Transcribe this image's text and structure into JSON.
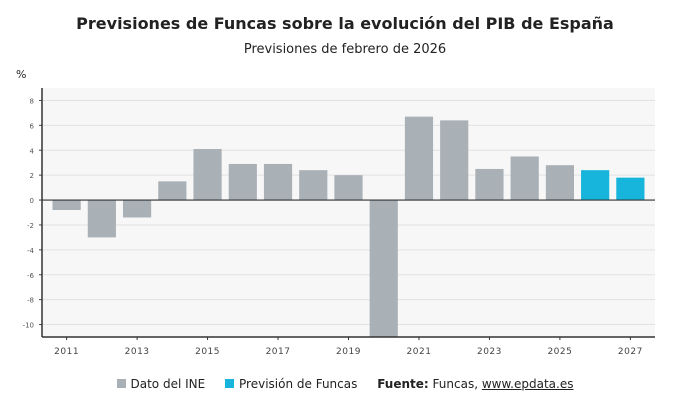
{
  "chart_data": {
    "type": "bar",
    "title": "Previsiones de Funcas sobre la evolución del PIB de España",
    "subtitle": "Previsiones de febrero de 2026",
    "ylabel": "%",
    "xlabel": "",
    "ylim": [
      -11,
      9
    ],
    "yticks": [
      8,
      6,
      4,
      2,
      0,
      -2,
      -4,
      -6,
      -8,
      -10
    ],
    "categories": [
      "2011",
      "2012",
      "2013",
      "2014",
      "2015",
      "2016",
      "2017",
      "2018",
      "2019",
      "2020",
      "2021",
      "2022",
      "2023",
      "2024",
      "2025",
      "2026",
      "2027"
    ],
    "xtick_labels": [
      "2011",
      "2013",
      "2015",
      "2017",
      "2019",
      "2021",
      "2023",
      "2025",
      "2027"
    ],
    "grid": true,
    "legend_placement": "bottom",
    "series": [
      {
        "name": "Dato del INE",
        "color": "#a9b0b6",
        "values": [
          -0.8,
          -3.0,
          -1.4,
          1.5,
          4.1,
          2.9,
          2.9,
          2.4,
          2.0,
          -11.2,
          6.7,
          6.4,
          2.5,
          3.5,
          2.8,
          null,
          null
        ]
      },
      {
        "name": "Previsión de Funcas",
        "color": "#17b5dc",
        "values": [
          null,
          null,
          null,
          null,
          null,
          null,
          null,
          null,
          null,
          null,
          null,
          null,
          null,
          null,
          null,
          2.4,
          1.8
        ]
      }
    ]
  },
  "source": {
    "label": "Fuente:",
    "text": "Funcas,",
    "link": "www.epdata.es"
  }
}
